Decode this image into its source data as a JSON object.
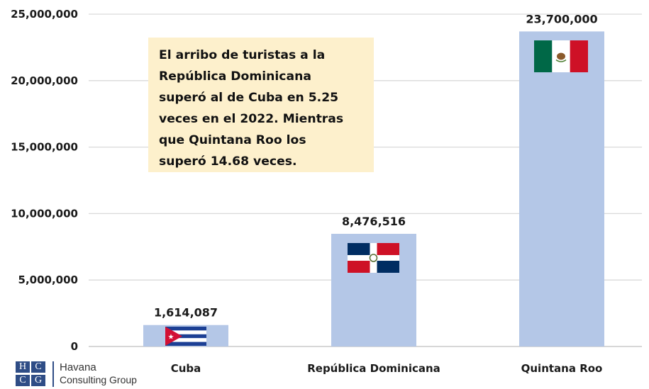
{
  "chart_data": {
    "type": "bar",
    "categories": [
      "Cuba",
      "República Dominicana",
      "Quintana Roo"
    ],
    "values": [
      1614087,
      8476516,
      23700000
    ],
    "data_labels": [
      "1,614,087",
      "8,476,516",
      "23,700,000"
    ],
    "ylim": [
      0,
      25000000
    ],
    "yticks": [
      0,
      5000000,
      10000000,
      15000000,
      20000000,
      25000000
    ],
    "ytick_labels": [
      "0",
      "5,000,000",
      "10,000,000",
      "15,000,000",
      "20,000,000",
      "25,000,000"
    ],
    "grid": true,
    "title": "",
    "xlabel": "",
    "ylabel": "",
    "bar_color": "#b4c7e7",
    "grid_color": "#d9d9d9",
    "flags": [
      "cuba-flag-icon",
      "dominican-republic-flag-icon",
      "mexico-flag-icon"
    ]
  },
  "annotation": {
    "lines": [
      "El arribo de turistas a la",
      "República Dominicana",
      "superó al de Cuba en 5.25",
      "veces en el 2022. Mientras",
      "que Quintana Roo los",
      "superó 14.68 veces."
    ],
    "background": "#fdf0cc"
  },
  "logo": {
    "letters": [
      "H",
      "C",
      "C",
      "G"
    ],
    "name": "Havana",
    "subtitle": "Consulting Group",
    "color": "#2f4d86"
  }
}
